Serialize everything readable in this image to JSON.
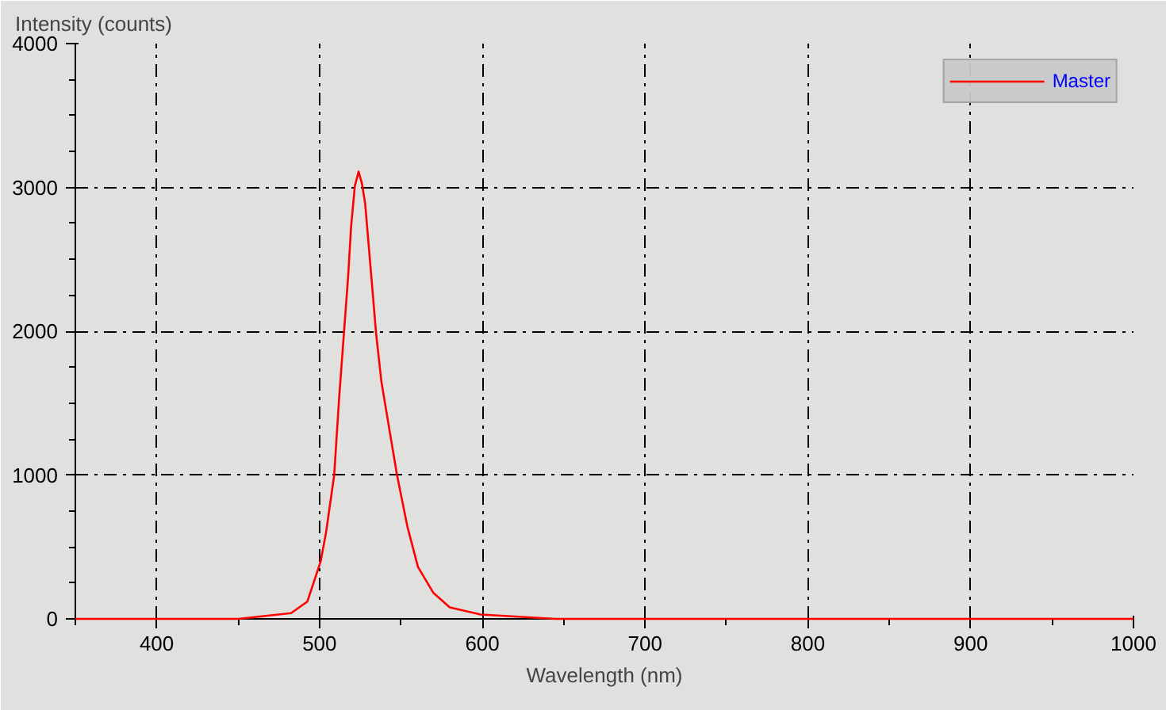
{
  "chart_data": {
    "type": "line",
    "xlabel": "Wavelength (nm)",
    "ylabel": "Intensity (counts)",
    "x": [
      350,
      400,
      450,
      482.5,
      492.5,
      500.7,
      504,
      509,
      512,
      515,
      517.5,
      519.4,
      521.7,
      524,
      526,
      528,
      531,
      534.7,
      538,
      542.7,
      547.6,
      554,
      560.5,
      570,
      580,
      599,
      645,
      700,
      800,
      900,
      1000
    ],
    "series": [
      {
        "name": "Master",
        "color": "#ff0000",
        "values": [
          0,
          0,
          0,
          40,
          120,
          400,
          600,
          1000,
          1530,
          1990,
          2370,
          2730,
          3010,
          3110,
          3030,
          2890,
          2490,
          1990,
          1650,
          1330,
          1000,
          640,
          360,
          180,
          80,
          30,
          0,
          0,
          0,
          0,
          0
        ]
      }
    ],
    "xlim": [
      350,
      1000
    ],
    "xticks": [
      400,
      500,
      600,
      700,
      800,
      900,
      1000
    ],
    "ylim": [
      0,
      4000
    ],
    "yticks": [
      0,
      1000,
      2000,
      3000,
      4000
    ],
    "grid": true,
    "legend": "top right",
    "marker": "none",
    "line_style": "solid"
  }
}
